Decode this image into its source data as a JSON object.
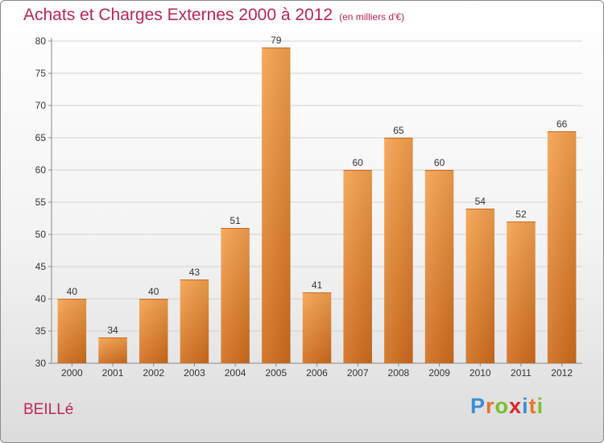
{
  "title": "Achats et Charges Externes 2000 à 2012",
  "subtitle": "(en milliers d'€)",
  "place": "BEILLé",
  "logo": {
    "letters": [
      "P",
      "r",
      "o",
      "x",
      "i",
      "t",
      "i"
    ],
    "colors": [
      "#3a8fd6",
      "#e8742a",
      "#7cbf2f",
      "#d8262d",
      "#3a8fd6",
      "#e8742a",
      "#7cbf2f"
    ]
  },
  "colors": {
    "bar": "#f0943b",
    "title": "#b8245a"
  },
  "chart_data": {
    "type": "bar",
    "categories": [
      "2000",
      "2001",
      "2002",
      "2003",
      "2004",
      "2005",
      "2006",
      "2007",
      "2008",
      "2009",
      "2010",
      "2011",
      "2012"
    ],
    "values": [
      40,
      34,
      40,
      43,
      51,
      79,
      41,
      60,
      65,
      60,
      54,
      52,
      66
    ],
    "ylim": [
      30,
      80
    ],
    "yticks": [
      30,
      35,
      40,
      45,
      50,
      55,
      60,
      65,
      70,
      75,
      80
    ],
    "grid": true
  }
}
